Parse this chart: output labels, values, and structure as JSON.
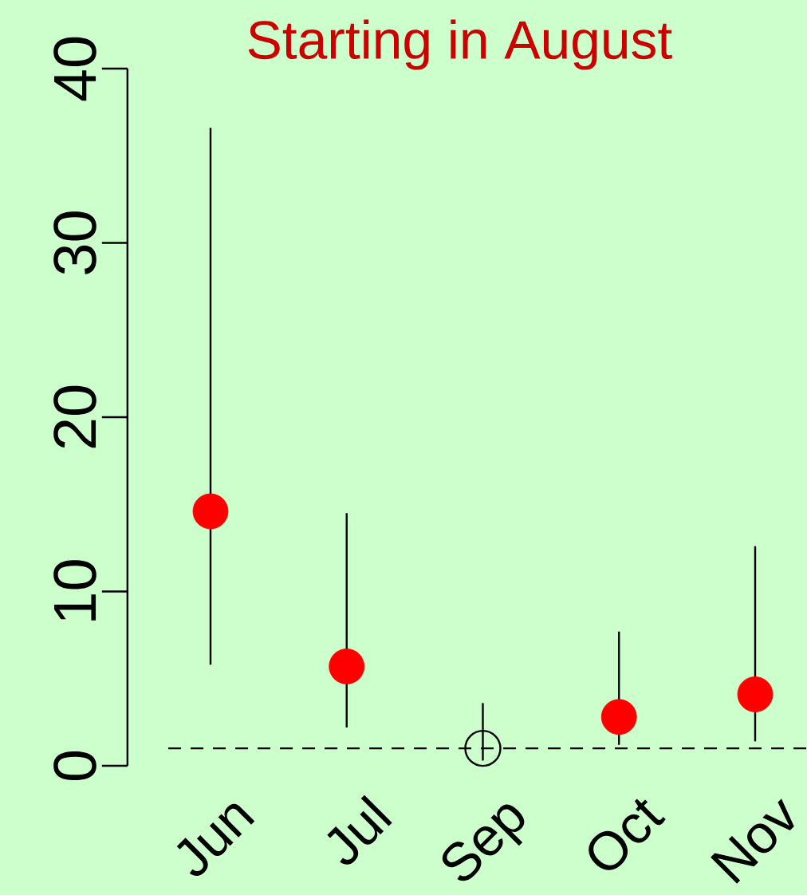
{
  "chart_data": {
    "type": "scatter",
    "title": "Starting in August",
    "categories": [
      "Jun",
      "Jul",
      "Sep",
      "Oct",
      "Nov"
    ],
    "series": [
      {
        "color": "#ff0000",
        "marker": "circle",
        "values": [
          14.6,
          5.7,
          null,
          2.8,
          4.1
        ],
        "errors": [
          [
            5.8,
            36.6
          ],
          [
            2.2,
            14.5
          ],
          null,
          [
            1.2,
            7.7
          ],
          [
            1.4,
            12.6
          ]
        ]
      },
      {
        "color": "#000000",
        "marker": "circle",
        "values": [
          null,
          null,
          1,
          null,
          null
        ],
        "errors": [
          null,
          null,
          [
            0.3,
            3.6
          ],
          null,
          null
        ]
      }
    ],
    "ylim": [
      0,
      40
    ],
    "yticks": [
      0,
      10,
      20,
      30,
      40
    ],
    "grid": false,
    "ref_lines": [
      {
        "axis": "y",
        "value": 1,
        "color": "#000000",
        "line_style": "dashed"
      }
    ]
  }
}
